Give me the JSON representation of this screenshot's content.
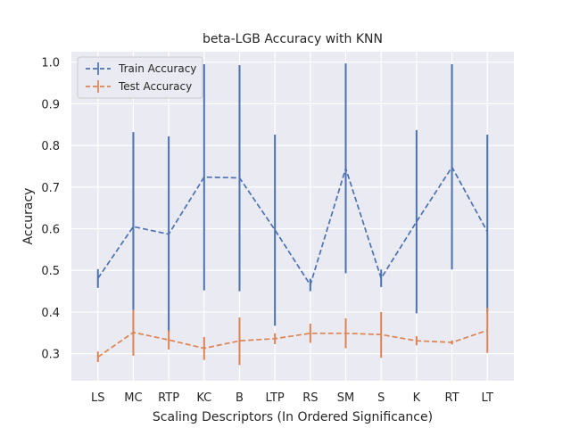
{
  "chart_data": {
    "type": "line",
    "title": "beta-LGB Accuracy with KNN",
    "xlabel": "Scaling Descriptors (In Ordered Significance)",
    "ylabel": "Accuracy",
    "categories": [
      "LS",
      "MC",
      "RTP",
      "KC",
      "B",
      "LTP",
      "RS",
      "SM",
      "S",
      "K",
      "RT",
      "LT"
    ],
    "ylim": [
      0.235,
      1.025
    ],
    "yticks": [
      "0.3",
      "0.4",
      "0.5",
      "0.6",
      "0.7",
      "0.8",
      "0.9",
      "1.0"
    ],
    "grid": true,
    "legend_position": "top-left",
    "series": [
      {
        "name": "Train Accuracy",
        "color": "#4c72b0",
        "line_style": "dashed",
        "values": [
          0.481,
          0.605,
          0.587,
          0.724,
          0.722,
          0.597,
          0.465,
          0.745,
          0.481,
          0.617,
          0.748,
          0.593
        ],
        "err_low": [
          0.458,
          0.405,
          0.352,
          0.452,
          0.45,
          0.367,
          0.45,
          0.493,
          0.46,
          0.397,
          0.502,
          0.4
        ],
        "err_high": [
          0.503,
          0.832,
          0.822,
          0.995,
          0.993,
          0.826,
          0.48,
          0.997,
          0.502,
          0.837,
          0.995,
          0.826
        ]
      },
      {
        "name": "Test Accuracy",
        "color": "#dd8452",
        "line_style": "dashed",
        "values": [
          0.292,
          0.351,
          0.333,
          0.313,
          0.331,
          0.336,
          0.349,
          0.349,
          0.346,
          0.331,
          0.327,
          0.356
        ],
        "err_low": [
          0.28,
          0.295,
          0.31,
          0.285,
          0.273,
          0.323,
          0.326,
          0.313,
          0.29,
          0.32,
          0.322,
          0.302
        ],
        "err_high": [
          0.305,
          0.405,
          0.356,
          0.34,
          0.387,
          0.349,
          0.372,
          0.385,
          0.4,
          0.342,
          0.332,
          0.41
        ]
      }
    ]
  }
}
